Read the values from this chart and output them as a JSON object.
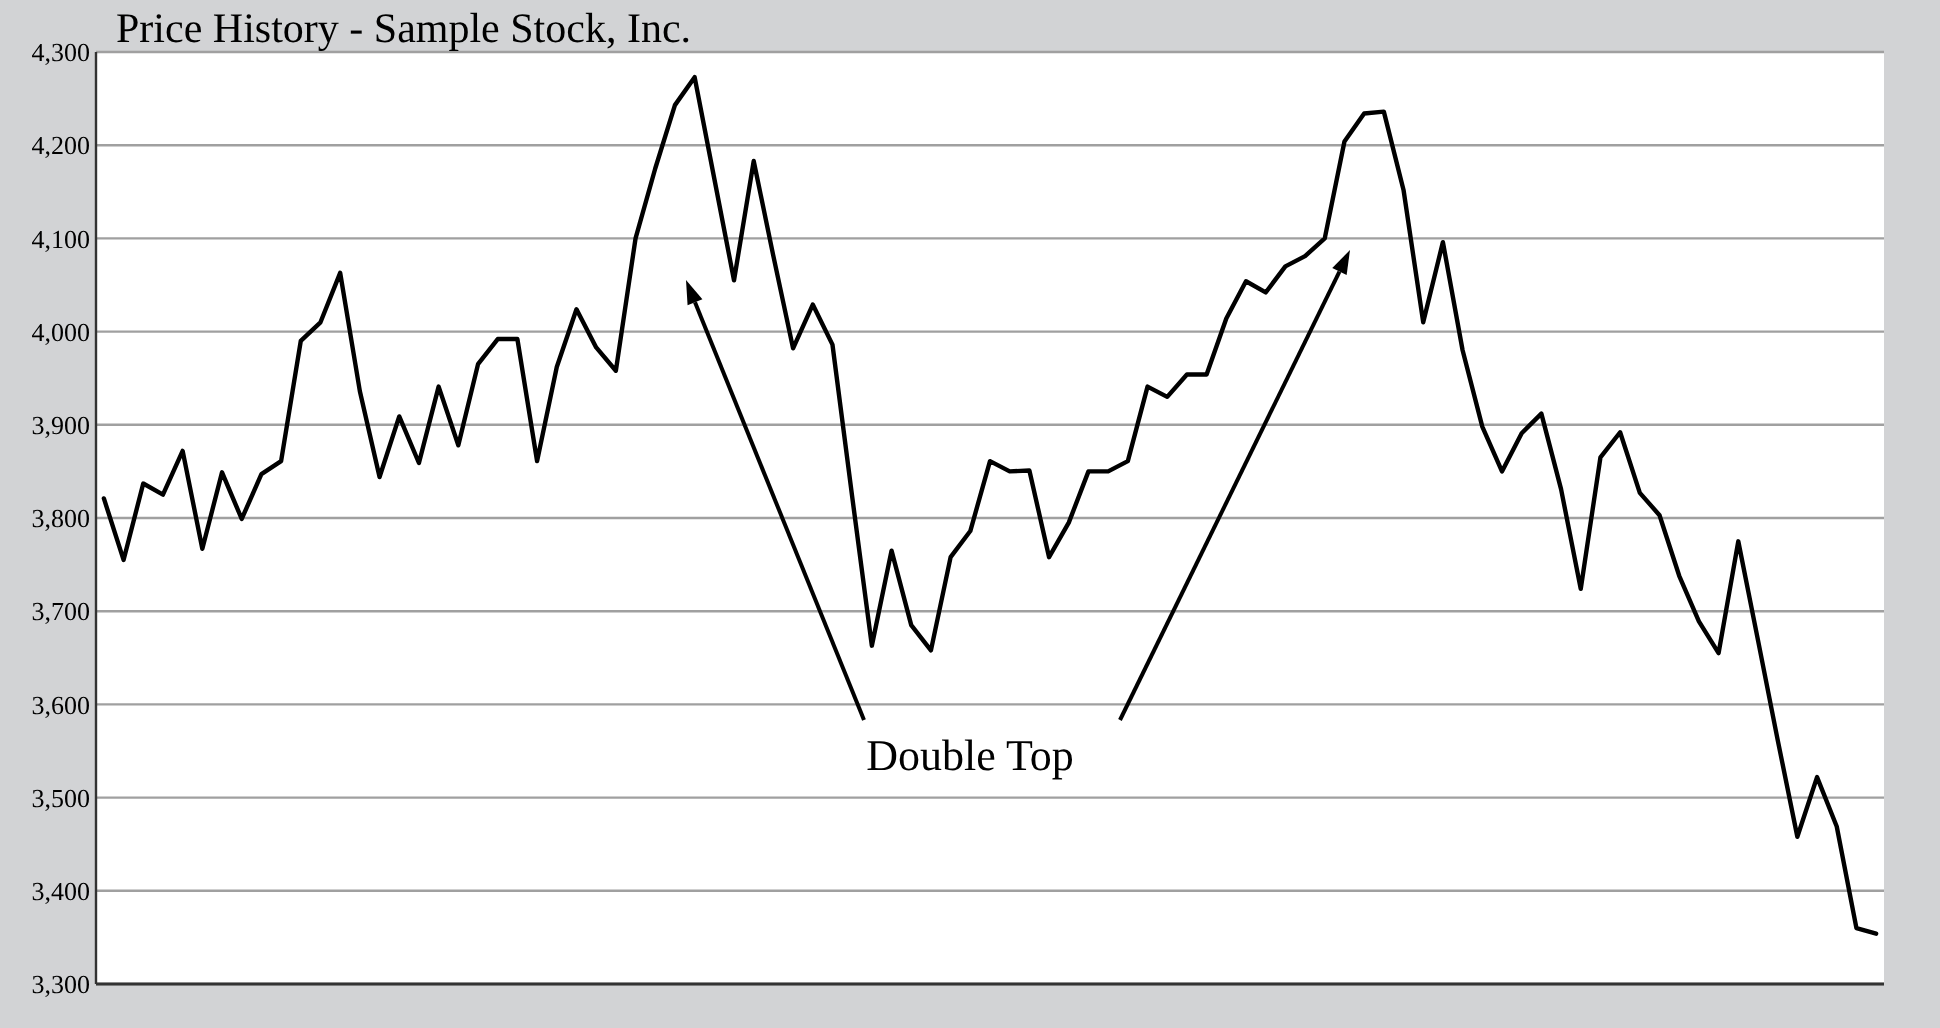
{
  "chart_data": {
    "type": "line",
    "title": "Price History - Sample Stock, Inc.",
    "categories": [
      null,
      null,
      null,
      null,
      null,
      null,
      null,
      null,
      null,
      null,
      null,
      null,
      null,
      null,
      null,
      null,
      null,
      null,
      null,
      null,
      null,
      null,
      null,
      null,
      null,
      null,
      null,
      null,
      null,
      null,
      null,
      null,
      null,
      null,
      null,
      null,
      null,
      null,
      null,
      null,
      null,
      null,
      null,
      null,
      null,
      null,
      null,
      null,
      null,
      null,
      null,
      null,
      null,
      null,
      null,
      null,
      null,
      null,
      null,
      null,
      null,
      null,
      null,
      null,
      null,
      null,
      null,
      null,
      null,
      null,
      null,
      null,
      null,
      null,
      null,
      null,
      null,
      null,
      null,
      null,
      null,
      null,
      null,
      null,
      null,
      null,
      null,
      null,
      null,
      null,
      null
    ],
    "series": [
      {
        "color": "#000000",
        "values": [
          3821,
          3755,
          3837,
          3825,
          3872,
          3767,
          3849,
          3799,
          3847,
          3861,
          3990,
          4010,
          4063,
          3936,
          3844,
          3909,
          3859,
          3941,
          3878,
          3965,
          3992,
          3992,
          3861,
          3962,
          4024,
          3983,
          3958,
          4100,
          4175,
          4243,
          4273,
          4164,
          4055,
          4183,
          4081,
          3982,
          4029,
          3986,
          3823,
          3663,
          3765,
          3685,
          3658,
          3758,
          3786,
          3861,
          3850,
          3851,
          3758,
          3795,
          3850,
          3850,
          3861,
          3941,
          3930,
          3954,
          3954,
          4014,
          4054,
          4042,
          4070,
          4081,
          4100,
          4204,
          4234,
          4236,
          4152,
          4010,
          4096,
          3980,
          3898,
          3850,
          3891,
          3912,
          3831,
          3724,
          3865,
          3892,
          3827,
          3803,
          3738,
          3689,
          3655,
          3775,
          3669,
          3562,
          3458,
          3522,
          3469,
          3360,
          3354
        ]
      }
    ],
    "ylim": [
      3300,
      4300
    ],
    "yticks": [
      {
        "value": 3300,
        "label": "3,300"
      },
      {
        "value": 3400,
        "label": "3,400"
      },
      {
        "value": 3500,
        "label": "3,500"
      },
      {
        "value": 3600,
        "label": "3,600"
      },
      {
        "value": 3700,
        "label": "3,700"
      },
      {
        "value": 3800,
        "label": "3,800"
      },
      {
        "value": 3900,
        "label": "3,900"
      },
      {
        "value": 4000,
        "label": "4,000"
      },
      {
        "value": 4100,
        "label": "4,100"
      },
      {
        "value": 4200,
        "label": "4,200"
      },
      {
        "value": 4300,
        "label": "4,300"
      }
    ],
    "tick_labels": "y",
    "grid": "y",
    "marker": "none",
    "line_style": "solid",
    "annotations": [
      "Double Top"
    ]
  }
}
